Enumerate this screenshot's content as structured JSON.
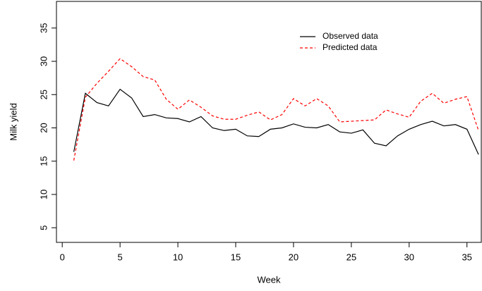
{
  "chart_data": {
    "type": "line",
    "xlabel": "Week",
    "ylabel": "Milk yield",
    "x": [
      1,
      2,
      3,
      4,
      5,
      6,
      7,
      8,
      9,
      10,
      11,
      12,
      13,
      14,
      15,
      16,
      17,
      18,
      19,
      20,
      21,
      22,
      23,
      24,
      25,
      26,
      27,
      28,
      29,
      30,
      31,
      32,
      33,
      34,
      35,
      36
    ],
    "series": [
      {
        "name": "Observed data",
        "color": "#000000",
        "line_style": "solid",
        "values": [
          16.4,
          25.2,
          23.8,
          23.3,
          25.8,
          24.5,
          21.7,
          22.0,
          21.5,
          21.4,
          20.9,
          21.7,
          20.0,
          19.6,
          19.8,
          18.8,
          18.7,
          19.8,
          20.0,
          20.6,
          20.1,
          20.0,
          20.5,
          19.4,
          19.2,
          19.7,
          17.7,
          17.3,
          18.8,
          19.8,
          20.5,
          21.0,
          20.3,
          20.5,
          19.8,
          16.0
        ]
      },
      {
        "name": "Predicted data",
        "color": "#ff0000",
        "line_style": "dashed",
        "values": [
          15.1,
          24.6,
          26.7,
          28.5,
          30.4,
          29.2,
          27.7,
          27.2,
          24.3,
          22.8,
          24.2,
          23.1,
          21.8,
          21.3,
          21.3,
          21.9,
          22.4,
          21.2,
          22.0,
          24.4,
          23.3,
          24.4,
          23.3,
          20.9,
          21.0,
          21.1,
          21.2,
          22.7,
          22.1,
          21.6,
          24.0,
          25.2,
          23.7,
          24.3,
          24.7,
          19.6
        ]
      }
    ],
    "xlim": [
      -0.5,
      36.3
    ],
    "xticks": [
      0,
      5,
      10,
      15,
      20,
      25,
      30,
      35
    ],
    "ylim": [
      2.8,
      39
    ],
    "yticks": [
      5,
      10,
      15,
      20,
      25,
      30,
      35
    ],
    "legend_position": "top"
  }
}
